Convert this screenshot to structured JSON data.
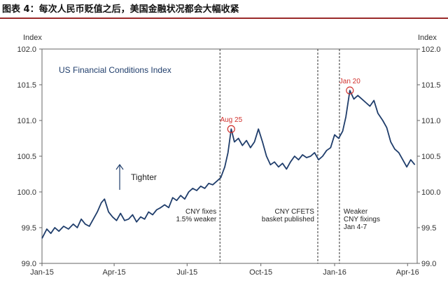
{
  "figure_title": "图表 4：每次人民币贬值之后，美国金融状况都会大幅收紧",
  "chart_data": {
    "type": "line",
    "legend": "US Financial Conditions Index",
    "left_axis_title": "Index",
    "right_axis_title": "Index",
    "ylim": [
      99.0,
      102.0
    ],
    "y_ticks": [
      "99.0",
      "99.5",
      "100.0",
      "100.5",
      "101.0",
      "101.5",
      "102.0"
    ],
    "x_ticks": [
      "Jan-15",
      "Apr-15",
      "Jul-15",
      "Oct-15",
      "Jan-16",
      "Apr-16"
    ],
    "grid": false,
    "series": [
      {
        "values": [
          [
            "2015-01-01",
            99.35
          ],
          [
            "2015-01-07",
            99.48
          ],
          [
            "2015-01-12",
            99.42
          ],
          [
            "2015-01-17",
            99.5
          ],
          [
            "2015-01-22",
            99.45
          ],
          [
            "2015-01-28",
            99.52
          ],
          [
            "2015-02-03",
            99.48
          ],
          [
            "2015-02-09",
            99.55
          ],
          [
            "2015-02-14",
            99.5
          ],
          [
            "2015-02-19",
            99.62
          ],
          [
            "2015-02-24",
            99.55
          ],
          [
            "2015-03-01",
            99.52
          ],
          [
            "2015-03-06",
            99.62
          ],
          [
            "2015-03-11",
            99.72
          ],
          [
            "2015-03-16",
            99.85
          ],
          [
            "2015-03-20",
            99.9
          ],
          [
            "2015-03-25",
            99.72
          ],
          [
            "2015-03-30",
            99.65
          ],
          [
            "2015-04-04",
            99.6
          ],
          [
            "2015-04-09",
            99.7
          ],
          [
            "2015-04-14",
            99.6
          ],
          [
            "2015-04-19",
            99.62
          ],
          [
            "2015-04-24",
            99.68
          ],
          [
            "2015-04-29",
            99.58
          ],
          [
            "2015-05-04",
            99.65
          ],
          [
            "2015-05-09",
            99.62
          ],
          [
            "2015-05-14",
            99.72
          ],
          [
            "2015-05-19",
            99.68
          ],
          [
            "2015-05-24",
            99.75
          ],
          [
            "2015-05-29",
            99.78
          ],
          [
            "2015-06-03",
            99.82
          ],
          [
            "2015-06-08",
            99.78
          ],
          [
            "2015-06-13",
            99.92
          ],
          [
            "2015-06-18",
            99.88
          ],
          [
            "2015-06-23",
            99.95
          ],
          [
            "2015-06-28",
            99.9
          ],
          [
            "2015-07-03",
            100.0
          ],
          [
            "2015-07-08",
            100.05
          ],
          [
            "2015-07-13",
            100.02
          ],
          [
            "2015-07-18",
            100.08
          ],
          [
            "2015-07-23",
            100.05
          ],
          [
            "2015-07-28",
            100.12
          ],
          [
            "2015-08-02",
            100.1
          ],
          [
            "2015-08-07",
            100.15
          ],
          [
            "2015-08-12",
            100.2
          ],
          [
            "2015-08-17",
            100.35
          ],
          [
            "2015-08-21",
            100.55
          ],
          [
            "2015-08-25",
            100.88
          ],
          [
            "2015-08-29",
            100.7
          ],
          [
            "2015-09-03",
            100.75
          ],
          [
            "2015-09-08",
            100.65
          ],
          [
            "2015-09-13",
            100.72
          ],
          [
            "2015-09-18",
            100.62
          ],
          [
            "2015-09-23",
            100.7
          ],
          [
            "2015-09-28",
            100.88
          ],
          [
            "2015-10-03",
            100.7
          ],
          [
            "2015-10-08",
            100.5
          ],
          [
            "2015-10-13",
            100.38
          ],
          [
            "2015-10-18",
            100.42
          ],
          [
            "2015-10-23",
            100.35
          ],
          [
            "2015-10-28",
            100.4
          ],
          [
            "2015-11-02",
            100.32
          ],
          [
            "2015-11-07",
            100.42
          ],
          [
            "2015-11-12",
            100.5
          ],
          [
            "2015-11-17",
            100.45
          ],
          [
            "2015-11-22",
            100.52
          ],
          [
            "2015-11-27",
            100.48
          ],
          [
            "2015-12-02",
            100.5
          ],
          [
            "2015-12-07",
            100.55
          ],
          [
            "2015-12-12",
            100.45
          ],
          [
            "2015-12-17",
            100.5
          ],
          [
            "2015-12-22",
            100.58
          ],
          [
            "2015-12-27",
            100.62
          ],
          [
            "2016-01-01",
            100.8
          ],
          [
            "2016-01-06",
            100.75
          ],
          [
            "2016-01-11",
            100.85
          ],
          [
            "2016-01-15",
            101.05
          ],
          [
            "2016-01-20",
            101.42
          ],
          [
            "2016-01-25",
            101.3
          ],
          [
            "2016-01-30",
            101.35
          ],
          [
            "2016-02-04",
            101.3
          ],
          [
            "2016-02-09",
            101.25
          ],
          [
            "2016-02-14",
            101.2
          ],
          [
            "2016-02-19",
            101.28
          ],
          [
            "2016-02-24",
            101.1
          ],
          [
            "2016-03-01",
            101.0
          ],
          [
            "2016-03-06",
            100.9
          ],
          [
            "2016-03-11",
            100.7
          ],
          [
            "2016-03-16",
            100.6
          ],
          [
            "2016-03-21",
            100.55
          ],
          [
            "2016-03-26",
            100.45
          ],
          [
            "2016-03-31",
            100.35
          ],
          [
            "2016-04-05",
            100.45
          ],
          [
            "2016-04-10",
            100.38
          ]
        ]
      }
    ],
    "annotations": [
      {
        "date": "2015-08-11",
        "lines": [
          "CNY fixes",
          "1.5% weaker"
        ]
      },
      {
        "date": "2015-12-11",
        "lines": [
          "CNY CFETS",
          "basket published"
        ]
      },
      {
        "date": "2016-01-07",
        "lines": [
          "Weaker",
          "CNY fixings",
          "Jan 4-7"
        ]
      }
    ],
    "highlights": [
      {
        "label": "Aug 25",
        "date": "2015-08-25",
        "value": 100.88
      },
      {
        "label": "Jan 20",
        "date": "2016-01-20",
        "value": 101.42
      }
    ],
    "tighter_label": "Tighter"
  },
  "colors": {
    "line": "#1f3d6b",
    "highlight": "#d0312d",
    "title_rule": "#9a2a2a",
    "axis": "#666666"
  }
}
